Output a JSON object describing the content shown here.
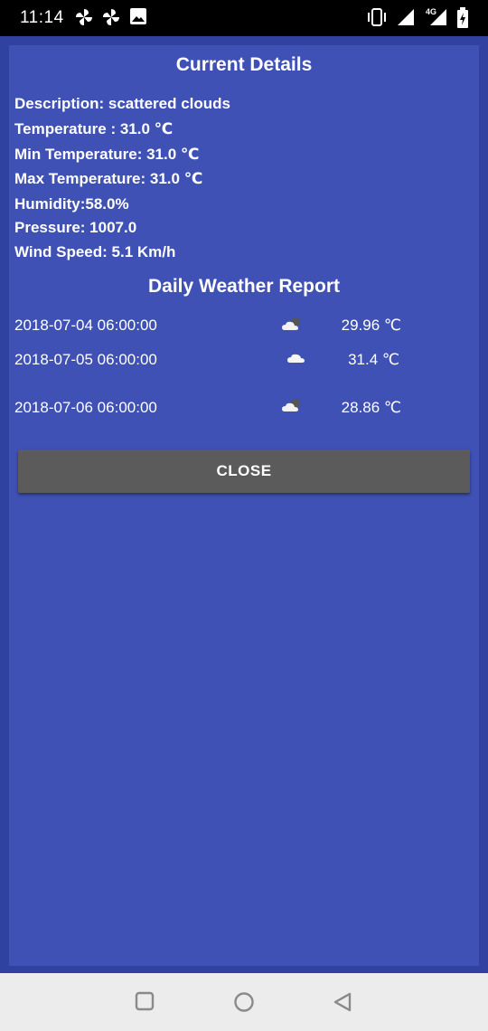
{
  "status_bar": {
    "time": "11:14",
    "network": "4G",
    "icons": [
      "fan-icon",
      "fan-icon",
      "image-icon",
      "vibrate-icon",
      "signal-icon",
      "signal-4g-icon",
      "battery-charging-icon"
    ]
  },
  "current_details": {
    "title": "Current Details",
    "description": "Description: scattered clouds",
    "temperature": "Temperature : 31.0 ℃",
    "min_temperature": "Min Temperature: 31.0 ℃",
    "max_temperature": "Max Temperature: 31.0 ℃",
    "humidity": "Humidity:58.0%",
    "pressure": "Pressure: 1007.0",
    "wind_speed": "Wind Speed: 5.1 Km/h"
  },
  "daily_report": {
    "title": "Daily Weather Report",
    "rows": [
      {
        "date": "2018-07-04 06:00:00",
        "icon": "partly-cloudy-icon",
        "temp": "29.96 ℃"
      },
      {
        "date": "2018-07-05 06:00:00",
        "icon": "cloud-icon",
        "temp": "31.4 ℃"
      },
      {
        "date": "2018-07-06 06:00:00",
        "icon": "partly-cloudy-icon",
        "temp": "28.86 ℃"
      }
    ]
  },
  "close_button": {
    "label": "CLOSE"
  },
  "nav_bar": {
    "icons": [
      "recents-square-icon",
      "home-circle-icon",
      "back-triangle-icon"
    ]
  },
  "colors": {
    "panel": "#3f51b5",
    "background": "#3041a0",
    "button": "#5b5b5b"
  }
}
